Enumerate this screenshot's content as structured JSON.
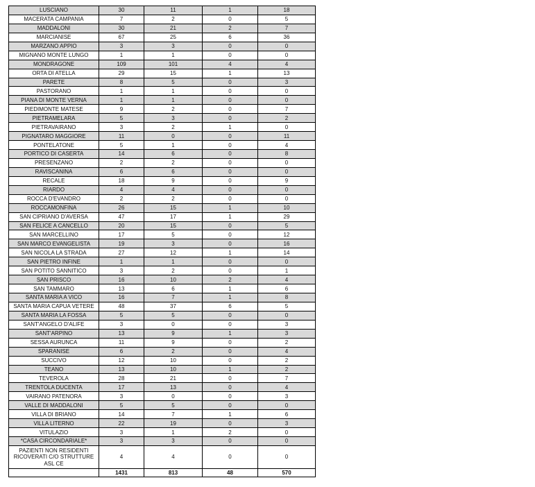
{
  "rows": [
    [
      "LUSCIANO",
      "30",
      "11",
      "1",
      "18"
    ],
    [
      "MACERATA CAMPANIA",
      "7",
      "2",
      "0",
      "5"
    ],
    [
      "MADDALONI",
      "30",
      "21",
      "2",
      "7"
    ],
    [
      "MARCIANISE",
      "67",
      "25",
      "6",
      "36"
    ],
    [
      "MARZANO APPIO",
      "3",
      "3",
      "0",
      "0"
    ],
    [
      "MIGNANO MONTE LUNGO",
      "1",
      "1",
      "0",
      "0"
    ],
    [
      "MONDRAGONE",
      "109",
      "101",
      "4",
      "4"
    ],
    [
      "ORTA DI ATELLA",
      "29",
      "15",
      "1",
      "13"
    ],
    [
      "PARETE",
      "8",
      "5",
      "0",
      "3"
    ],
    [
      "PASTORANO",
      "1",
      "1",
      "0",
      "0"
    ],
    [
      "PIANA DI MONTE VERNA",
      "1",
      "1",
      "0",
      "0"
    ],
    [
      "PIEDIMONTE MATESE",
      "9",
      "2",
      "0",
      "7"
    ],
    [
      "PIETRAMELARA",
      "5",
      "3",
      "0",
      "2"
    ],
    [
      "PIETRAVAIRANO",
      "3",
      "2",
      "1",
      "0"
    ],
    [
      "PIGNATARO MAGGIORE",
      "11",
      "0",
      "0",
      "11"
    ],
    [
      "PONTELATONE",
      "5",
      "1",
      "0",
      "4"
    ],
    [
      "PORTICO DI CASERTA",
      "14",
      "6",
      "0",
      "8"
    ],
    [
      "PRESENZANO",
      "2",
      "2",
      "0",
      "0"
    ],
    [
      "RAVISCANINA",
      "6",
      "6",
      "0",
      "0"
    ],
    [
      "RECALE",
      "18",
      "9",
      "0",
      "9"
    ],
    [
      "RIARDO",
      "4",
      "4",
      "0",
      "0"
    ],
    [
      "ROCCA D'EVANDRO",
      "2",
      "2",
      "0",
      "0"
    ],
    [
      "ROCCAMONFINA",
      "26",
      "15",
      "1",
      "10"
    ],
    [
      "SAN CIPRIANO D'AVERSA",
      "47",
      "17",
      "1",
      "29"
    ],
    [
      "SAN FELICE A CANCELLO",
      "20",
      "15",
      "0",
      "5"
    ],
    [
      "SAN MARCELLINO",
      "17",
      "5",
      "0",
      "12"
    ],
    [
      "SAN MARCO EVANGELISTA",
      "19",
      "3",
      "0",
      "16"
    ],
    [
      "SAN NICOLA LA STRADA",
      "27",
      "12",
      "1",
      "14"
    ],
    [
      "SAN PIETRO INFINE",
      "1",
      "1",
      "0",
      "0"
    ],
    [
      "SAN POTITO SANNITICO",
      "3",
      "2",
      "0",
      "1"
    ],
    [
      "SAN PRISCO",
      "16",
      "10",
      "2",
      "4"
    ],
    [
      "SAN TAMMARO",
      "13",
      "6",
      "1",
      "6"
    ],
    [
      "SANTA MARIA A VICO",
      "16",
      "7",
      "1",
      "8"
    ],
    [
      "SANTA MARIA CAPUA VETERE",
      "48",
      "37",
      "6",
      "5"
    ],
    [
      "SANTA MARIA LA FOSSA",
      "5",
      "5",
      "0",
      "0"
    ],
    [
      "SANT'ANGELO D'ALIFE",
      "3",
      "0",
      "0",
      "3"
    ],
    [
      "SANT'ARPINO",
      "13",
      "9",
      "1",
      "3"
    ],
    [
      "SESSA AURUNCA",
      "11",
      "9",
      "0",
      "2"
    ],
    [
      "SPARANISE",
      "6",
      "2",
      "0",
      "4"
    ],
    [
      "SUCCIVO",
      "12",
      "10",
      "0",
      "2"
    ],
    [
      "TEANO",
      "13",
      "10",
      "1",
      "2"
    ],
    [
      "TEVEROLA",
      "28",
      "21",
      "0",
      "7"
    ],
    [
      "TRENTOLA DUCENTA",
      "17",
      "13",
      "0",
      "4"
    ],
    [
      "VAIRANO PATENORA",
      "3",
      "0",
      "0",
      "3"
    ],
    [
      "VALLE DI MADDALONI",
      "5",
      "5",
      "0",
      "0"
    ],
    [
      "VILLA DI BRIANO",
      "14",
      "7",
      "1",
      "6"
    ],
    [
      "VILLA LITERNO",
      "22",
      "19",
      "0",
      "3"
    ],
    [
      "VITULAZIO",
      "3",
      "1",
      "2",
      "0"
    ],
    [
      "*CASA CIRCONDARIALE*",
      "3",
      "3",
      "0",
      "0"
    ],
    [
      "PAZIENTI NON RESIDENTI RICOVERATI C/O STRUTTURE ASL CE",
      "4",
      "4",
      "0",
      "0"
    ]
  ],
  "totals": [
    "",
    "1431",
    "813",
    "48",
    "570"
  ],
  "colors": {
    "shaded_row": "#d9d9d9"
  }
}
